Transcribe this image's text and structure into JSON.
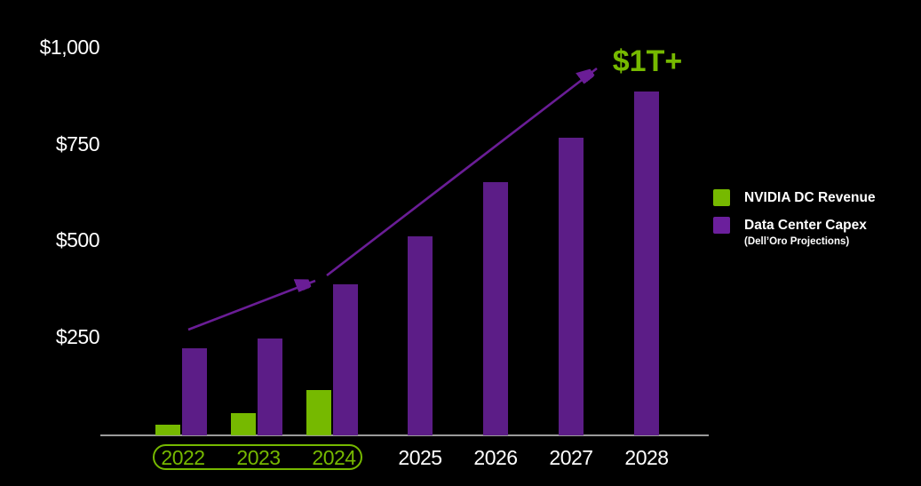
{
  "chart_data": {
    "type": "bar",
    "title": "",
    "unit": "$B",
    "categories": [
      "2022",
      "2023",
      "2024",
      "2025",
      "2026",
      "2027",
      "2028"
    ],
    "series": [
      {
        "name": "NVIDIA DC Revenue",
        "color": "#76B900",
        "values": [
          20,
          50,
          110,
          null,
          null,
          null,
          null
        ]
      },
      {
        "name": "Data Center Capex",
        "sublabel": "(Dell’Oro Projections)",
        "color": "#5C1D87",
        "values": [
          220,
          245,
          385,
          510,
          650,
          765,
          885
        ]
      }
    ],
    "ylim": [
      0,
      1000
    ],
    "y_ticks": [
      {
        "label": "$1,000",
        "value": 1000
      },
      {
        "label": "$750",
        "value": 750
      },
      {
        "label": "$500",
        "value": 500
      },
      {
        "label": "$250",
        "value": 250
      }
    ],
    "grid": false,
    "legend_position": "right",
    "background": "#000000",
    "highlighted_years": [
      "2022",
      "2023",
      "2024"
    ],
    "highlight_color": "#76B900",
    "annotation": {
      "text": "$1T+",
      "color": "#76B900"
    },
    "trend_arrow_color": "#6A1D96"
  },
  "legend": {
    "items": [
      {
        "label": "NVIDIA DC Revenue",
        "color": "#76B900"
      },
      {
        "label": "Data Center Capex",
        "sublabel": "(Dell’Oro Projections)",
        "color": "#6B1F9C"
      }
    ]
  }
}
